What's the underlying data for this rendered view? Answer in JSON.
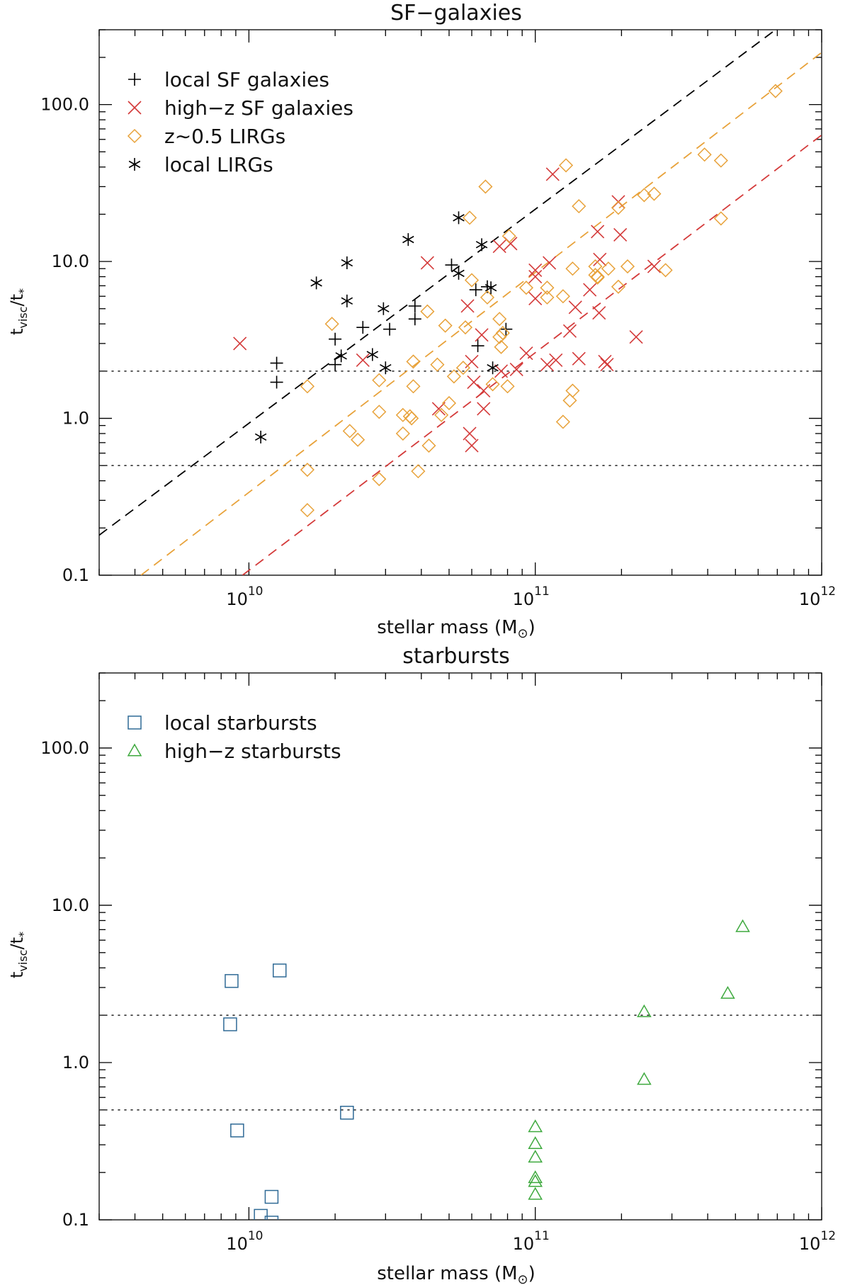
{
  "chart_data": [
    {
      "type": "scatter",
      "title": "SF−galaxies",
      "xlabel": "stellar mass (M",
      "xlabel_symbol": "⊙",
      "xlabel_close": ")",
      "ylabel": "t",
      "ylabel_sub": "visc",
      "ylabel_den": "/t",
      "ylabel_den_sub": "*",
      "xscale": "log",
      "yscale": "log",
      "xlim": [
        3000000000.0,
        1000000000000.0
      ],
      "ylim": [
        0.1,
        300
      ],
      "x_ticks": [
        {
          "value": 10000000000.0,
          "base": "10",
          "exp": "10"
        },
        {
          "value": 100000000000.0,
          "base": "10",
          "exp": "11"
        },
        {
          "value": 1000000000000.0,
          "base": "10",
          "exp": "12"
        }
      ],
      "y_ticks": [
        {
          "value": 0.1,
          "label": "0.1"
        },
        {
          "value": 1.0,
          "label": "1.0"
        },
        {
          "value": 10.0,
          "label": "10.0"
        },
        {
          "value": 100.0,
          "label": "100.0"
        }
      ],
      "hlines": [
        2.0,
        0.5
      ],
      "legend_position": "top-left",
      "fit_lines": [
        {
          "color": "#000000",
          "points": [
            [
              3000000000.0,
              0.18
            ],
            [
              690000000000.0,
              300
            ]
          ]
        },
        {
          "color": "#e8a23a",
          "points": [
            [
              4200000000.0,
              0.1
            ],
            [
              1000000000000.0,
              215
            ]
          ]
        },
        {
          "color": "#d43a3a",
          "points": [
            [
              9500000000.0,
              0.1
            ],
            [
              1000000000000.0,
              64
            ]
          ]
        }
      ],
      "series": [
        {
          "name": "local SF galaxies",
          "marker": "plus",
          "color": "#000000",
          "points": [
            [
              12500000000.0,
              2.25
            ],
            [
              12500000000.0,
              1.7
            ],
            [
              20000000000.0,
              3.2
            ],
            [
              20000000000.0,
              2.2
            ],
            [
              25000000000.0,
              3.8
            ],
            [
              31000000000.0,
              3.7
            ],
            [
              38000000000.0,
              5.2
            ],
            [
              38000000000.0,
              4.3
            ],
            [
              51000000000.0,
              9.5
            ],
            [
              62000000000.0,
              6.6
            ],
            [
              63000000000.0,
              2.9
            ],
            [
              68000000000.0,
              6.9
            ],
            [
              79000000000.0,
              3.7
            ]
          ]
        },
        {
          "name": "high−z SF galaxies",
          "marker": "x",
          "color": "#d43a3a",
          "points": [
            [
              9300000000.0,
              3.0
            ],
            [
              25000000000.0,
              2.35
            ],
            [
              42000000000.0,
              9.8
            ],
            [
              46000000000.0,
              1.15
            ],
            [
              58000000000.0,
              5.2
            ],
            [
              59000000000.0,
              0.8
            ],
            [
              60000000000.0,
              2.3
            ],
            [
              60000000000.0,
              0.67
            ],
            [
              61000000000.0,
              1.7
            ],
            [
              65000000000.0,
              3.4
            ],
            [
              66000000000.0,
              1.15
            ],
            [
              66000000000.0,
              1.5
            ],
            [
              75000000000.0,
              12.5
            ],
            [
              76000000000.0,
              2.0
            ],
            [
              82000000000.0,
              13.0
            ],
            [
              86000000000.0,
              2.05
            ],
            [
              93000000000.0,
              2.6
            ],
            [
              100000000000.0,
              5.8
            ],
            [
              100000000000.0,
              8.0
            ],
            [
              100000000000.0,
              8.8
            ],
            [
              110000000000.0,
              2.2
            ],
            [
              112000000000.0,
              9.8
            ],
            [
              115000000000.0,
              36.0
            ],
            [
              118000000000.0,
              2.35
            ],
            [
              132000000000.0,
              3.6
            ],
            [
              138000000000.0,
              5.1
            ],
            [
              142000000000.0,
              2.4
            ],
            [
              155000000000.0,
              6.6
            ],
            [
              165000000000.0,
              15.5
            ],
            [
              167000000000.0,
              4.7
            ],
            [
              168000000000.0,
              10.3
            ],
            [
              175000000000.0,
              2.3
            ],
            [
              178000000000.0,
              2.2
            ],
            [
              195000000000.0,
              24.0
            ],
            [
              198000000000.0,
              14.8
            ],
            [
              225000000000.0,
              3.3
            ],
            [
              260000000000.0,
              9.3
            ]
          ]
        },
        {
          "name": "z∼0.5 LIRGs",
          "marker": "diamond",
          "color": "#e8a23a",
          "points": [
            [
              16000000000.0,
              1.6
            ],
            [
              16000000000.0,
              0.47
            ],
            [
              16000000000.0,
              0.26
            ],
            [
              19500000000.0,
              4.0
            ],
            [
              22500000000.0,
              0.83
            ],
            [
              24000000000.0,
              0.73
            ],
            [
              28500000000.0,
              1.75
            ],
            [
              28500000000.0,
              1.1
            ],
            [
              28500000000.0,
              0.41
            ],
            [
              34500000000.0,
              1.05
            ],
            [
              34500000000.0,
              0.8
            ],
            [
              36500000000.0,
              1.03
            ],
            [
              37000000000.0,
              1.0
            ],
            [
              37500000000.0,
              2.3
            ],
            [
              37500000000.0,
              1.6
            ],
            [
              39000000000.0,
              0.46
            ],
            [
              42000000000.0,
              4.8
            ],
            [
              42500000000.0,
              0.67
            ],
            [
              45500000000.0,
              2.2
            ],
            [
              47000000000.0,
              1.05
            ],
            [
              48500000000.0,
              3.9
            ],
            [
              50000000000.0,
              1.25
            ],
            [
              52000000000.0,
              1.85
            ],
            [
              56000000000.0,
              2.1
            ],
            [
              57000000000.0,
              3.8
            ],
            [
              59000000000.0,
              19.0
            ],
            [
              60000000000.0,
              7.6
            ],
            [
              67000000000.0,
              30.0
            ],
            [
              68000000000.0,
              5.9
            ],
            [
              71000000000.0,
              1.65
            ],
            [
              75000000000.0,
              4.3
            ],
            [
              75000000000.0,
              3.3
            ],
            [
              76000000000.0,
              2.85
            ],
            [
              77000000000.0,
              3.5
            ],
            [
              80000000000.0,
              1.6
            ],
            [
              81000000000.0,
              14.5
            ],
            [
              93000000000.0,
              6.8
            ],
            [
              110000000000.0,
              5.9
            ],
            [
              110000000000.0,
              6.8
            ],
            [
              125000000000.0,
              6.0
            ],
            [
              125000000000.0,
              0.95
            ],
            [
              128000000000.0,
              41.0
            ],
            [
              132000000000.0,
              1.3
            ],
            [
              135000000000.0,
              9.0
            ],
            [
              135000000000.0,
              1.5
            ],
            [
              142000000000.0,
              22.5
            ],
            [
              162000000000.0,
              9.3
            ],
            [
              162000000000.0,
              8.2
            ],
            [
              165000000000.0,
              8.0
            ],
            [
              165000000000.0,
              7.9
            ],
            [
              180000000000.0,
              9.0
            ],
            [
              195000000000.0,
              22.0
            ],
            [
              195000000000.0,
              6.9
            ],
            [
              210000000000.0,
              9.3
            ],
            [
              240000000000.0,
              26.5
            ],
            [
              260000000000.0,
              27.0
            ],
            [
              285000000000.0,
              8.8
            ],
            [
              390000000000.0,
              48.0
            ],
            [
              445000000000.0,
              44.0
            ],
            [
              445000000000.0,
              18.8
            ],
            [
              690000000000.0,
              122.0
            ]
          ]
        },
        {
          "name": "local LIRGs",
          "marker": "asterisk",
          "color": "#000000",
          "points": [
            [
              11000000000.0,
              0.76
            ],
            [
              17200000000.0,
              7.3
            ],
            [
              21000000000.0,
              2.5
            ],
            [
              22000000000.0,
              9.8
            ],
            [
              22000000000.0,
              5.6
            ],
            [
              27000000000.0,
              2.55
            ],
            [
              29500000000.0,
              5.0
            ],
            [
              30000000000.0,
              2.1
            ],
            [
              36000000000.0,
              13.8
            ],
            [
              54000000000.0,
              19.0
            ],
            [
              54000000000.0,
              8.4
            ],
            [
              65000000000.0,
              12.8
            ],
            [
              70000000000.0,
              6.8
            ],
            [
              71000000000.0,
              2.1
            ]
          ]
        }
      ]
    },
    {
      "type": "scatter",
      "title": "starbursts",
      "xlabel": "stellar mass (M",
      "xlabel_symbol": "⊙",
      "xlabel_close": ")",
      "ylabel": "t",
      "ylabel_sub": "visc",
      "ylabel_den": "/t",
      "ylabel_den_sub": "*",
      "xscale": "log",
      "yscale": "log",
      "xlim": [
        3000000000.0,
        1000000000000.0
      ],
      "ylim": [
        0.1,
        300
      ],
      "x_ticks": [
        {
          "value": 10000000000.0,
          "base": "10",
          "exp": "10"
        },
        {
          "value": 100000000000.0,
          "base": "10",
          "exp": "11"
        },
        {
          "value": 1000000000000.0,
          "base": "10",
          "exp": "12"
        }
      ],
      "y_ticks": [
        {
          "value": 0.1,
          "label": "0.1"
        },
        {
          "value": 1.0,
          "label": "1.0"
        },
        {
          "value": 10.0,
          "label": "10.0"
        },
        {
          "value": 100.0,
          "label": "100.0"
        }
      ],
      "hlines": [
        2.0,
        0.5
      ],
      "legend_position": "top-left",
      "fit_lines": [],
      "series": [
        {
          "name": "local starbursts",
          "marker": "square",
          "color": "#2f6a96",
          "points": [
            [
              8700000000.0,
              3.3
            ],
            [
              8600000000.0,
              1.75
            ],
            [
              9100000000.0,
              0.37
            ],
            [
              11000000000.0,
              0.106
            ],
            [
              12000000000.0,
              0.14
            ],
            [
              12000000000.0,
              0.096
            ],
            [
              12800000000.0,
              3.85
            ],
            [
              22000000000.0,
              0.48
            ]
          ]
        },
        {
          "name": "high−z starbursts",
          "marker": "triangle",
          "color": "#3ea93e",
          "points": [
            [
              100000000000.0,
              0.39
            ],
            [
              100000000000.0,
              0.305
            ],
            [
              100000000000.0,
              0.25
            ],
            [
              100000000000.0,
              0.185
            ],
            [
              100000000000.0,
              0.175
            ],
            [
              100000000000.0,
              0.145
            ],
            [
              240000000000.0,
              2.1
            ],
            [
              240000000000.0,
              0.78
            ],
            [
              470000000000.0,
              2.75
            ],
            [
              530000000000.0,
              7.3
            ]
          ]
        }
      ]
    }
  ]
}
